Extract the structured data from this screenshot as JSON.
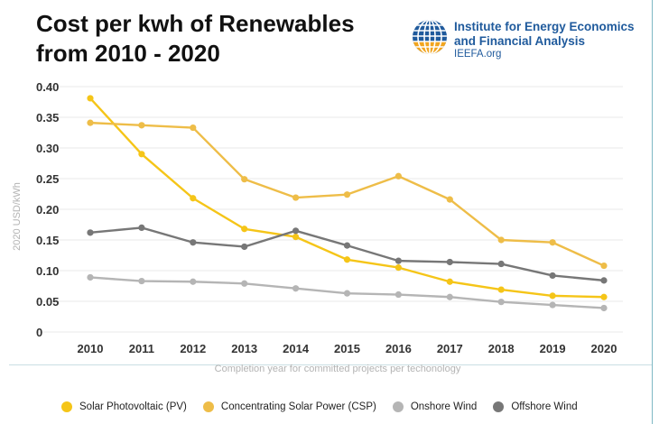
{
  "title": {
    "line1": "Cost per kwh of Renewables",
    "line2": "from 2010 - 2020"
  },
  "logo": {
    "line1": "Institute for Energy Economics",
    "line2": "and Financial Analysis",
    "url": "IEEFA.org",
    "icon": "globe-icon"
  },
  "colors": {
    "pv": "#f5c518",
    "csp": "#eebd48",
    "onshore": "#b5b5b5",
    "offshore": "#777777",
    "grid": "#e9e9e9",
    "logo_blue": "#1f5a9c",
    "frame": "#7fb8c4"
  },
  "chart_data": {
    "type": "line",
    "x": [
      2010,
      2011,
      2012,
      2013,
      2014,
      2015,
      2016,
      2017,
      2018,
      2019,
      2020
    ],
    "xlabel": "Completion year for committed projects per techonology",
    "ylabel": "2020 USD/kWh",
    "ylim": [
      0,
      0.4
    ],
    "yticks": [
      "0",
      "0.05",
      "0.10",
      "0.15",
      "0.20",
      "0.25",
      "0.30",
      "0.35",
      "0.40"
    ],
    "grid": true,
    "legend_position": "bottom",
    "series": [
      {
        "name": "Solar Photovoltaic (PV)",
        "color_key": "pv",
        "values": [
          0.381,
          0.29,
          0.218,
          0.168,
          0.155,
          0.118,
          0.105,
          0.082,
          0.069,
          0.059,
          0.057
        ]
      },
      {
        "name": "Concentrating Solar Power (CSP)",
        "color_key": "csp",
        "values": [
          0.341,
          0.337,
          0.333,
          0.249,
          0.219,
          0.224,
          0.254,
          0.216,
          0.15,
          0.146,
          0.108
        ]
      },
      {
        "name": "Onshore Wind",
        "color_key": "onshore",
        "values": [
          0.089,
          0.083,
          0.082,
          0.079,
          0.071,
          0.063,
          0.061,
          0.057,
          0.049,
          0.044,
          0.039
        ]
      },
      {
        "name": "Offshore Wind",
        "color_key": "offshore",
        "values": [
          0.162,
          0.17,
          0.146,
          0.139,
          0.165,
          0.141,
          0.116,
          0.114,
          0.111,
          0.092,
          0.084
        ]
      }
    ]
  }
}
